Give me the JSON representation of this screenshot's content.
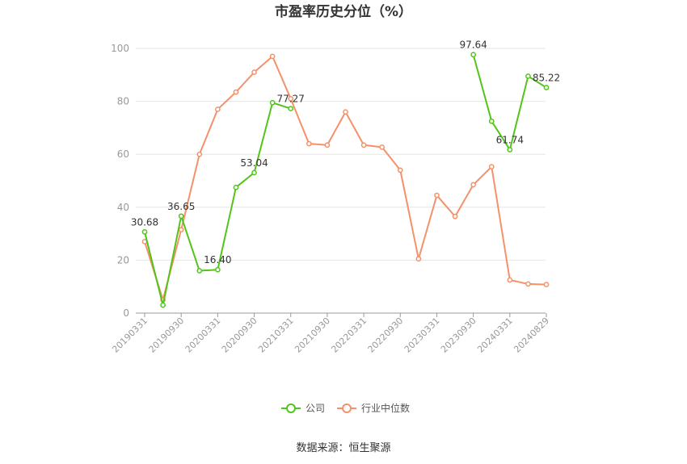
{
  "chart_data": {
    "type": "line",
    "title": "市盈率历史分位（%）",
    "source": "数据来源：恒生聚源",
    "ylim": [
      0,
      100
    ],
    "yticks": [
      0,
      20,
      40,
      60,
      80,
      100
    ],
    "grid": true,
    "legend_position": "bottom",
    "x": [
      "20190331",
      "20190630",
      "20190930",
      "20191231",
      "20200331",
      "20200630",
      "20200930",
      "20201231",
      "20210331",
      "20210630",
      "20210930",
      "20211231",
      "20220331",
      "20220630",
      "20220930",
      "20221231",
      "20230331",
      "20230630",
      "20230930",
      "20231231",
      "20240331",
      "20240630",
      "20240829"
    ],
    "xtick_labels": [
      "20190331",
      "20190930",
      "20200331",
      "20200930",
      "20210331",
      "20210930",
      "20220331",
      "20220930",
      "20230331",
      "20230930",
      "20240331",
      "20240829"
    ],
    "series": [
      {
        "name": "公司",
        "color": "#52c41a",
        "values": [
          30.68,
          3.0,
          36.65,
          16.0,
          16.4,
          47.5,
          53.04,
          79.5,
          77.27,
          null,
          null,
          null,
          null,
          null,
          null,
          null,
          null,
          null,
          97.64,
          72.5,
          61.74,
          89.5,
          85.22
        ],
        "labels": [
          {
            "index": 0,
            "text": "30.68"
          },
          {
            "index": 2,
            "text": "36.65"
          },
          {
            "index": 4,
            "text": "16.40"
          },
          {
            "index": 6,
            "text": "53.04"
          },
          {
            "index": 8,
            "text": "77.27"
          },
          {
            "index": 18,
            "text": "97.64"
          },
          {
            "index": 20,
            "text": "61.74"
          },
          {
            "index": 22,
            "text": "85.22"
          }
        ]
      },
      {
        "name": "行业中位数",
        "color": "#f5916a",
        "values": [
          27.0,
          5.0,
          31.5,
          60.0,
          77.0,
          83.5,
          91.0,
          97.0,
          81.0,
          64.0,
          63.5,
          76.0,
          63.5,
          62.7,
          54.0,
          20.5,
          44.5,
          36.5,
          48.5,
          55.3,
          12.5,
          11.0,
          10.8
        ]
      }
    ]
  }
}
